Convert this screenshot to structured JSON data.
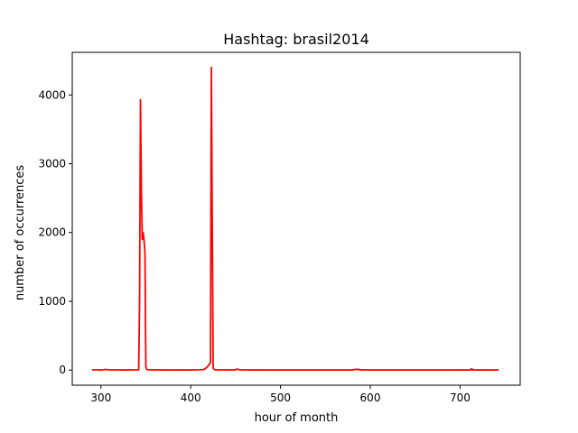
{
  "chart_data": {
    "type": "line",
    "title": "Hashtag: brasil2014",
    "xlabel": "hour of month",
    "ylabel": "number of occurrences",
    "xlim": [
      268,
      767
    ],
    "ylim": [
      -220,
      4620
    ],
    "xticks": [
      300,
      400,
      500,
      600,
      700
    ],
    "yticks": [
      0,
      1000,
      2000,
      3000,
      4000
    ],
    "grid": false,
    "series": [
      {
        "color": "#ff0000",
        "x": [
          290,
          295,
          300,
          303,
          305,
          310,
          320,
          330,
          340,
          342,
          343,
          344,
          345,
          346,
          347,
          348,
          349,
          350,
          351,
          352,
          360,
          380,
          400,
          410,
          415,
          418,
          420,
          421,
          422,
          423,
          424,
          425,
          426,
          427,
          428,
          440,
          450,
          451,
          455,
          460,
          480,
          500,
          520,
          540,
          560,
          580,
          585,
          590,
          600,
          620,
          640,
          660,
          680,
          700,
          712,
          713,
          714,
          720,
          740,
          743
        ],
        "y": [
          5,
          3,
          2,
          5,
          10,
          3,
          2,
          2,
          3,
          5,
          1000,
          3930,
          2600,
          1900,
          2000,
          1880,
          1700,
          50,
          10,
          5,
          2,
          2,
          2,
          5,
          10,
          40,
          70,
          90,
          110,
          4400,
          2000,
          30,
          10,
          5,
          3,
          2,
          3,
          15,
          3,
          2,
          2,
          2,
          2,
          2,
          2,
          2,
          12,
          2,
          2,
          2,
          2,
          2,
          2,
          2,
          2,
          20,
          2,
          2,
          2,
          2
        ]
      }
    ]
  }
}
